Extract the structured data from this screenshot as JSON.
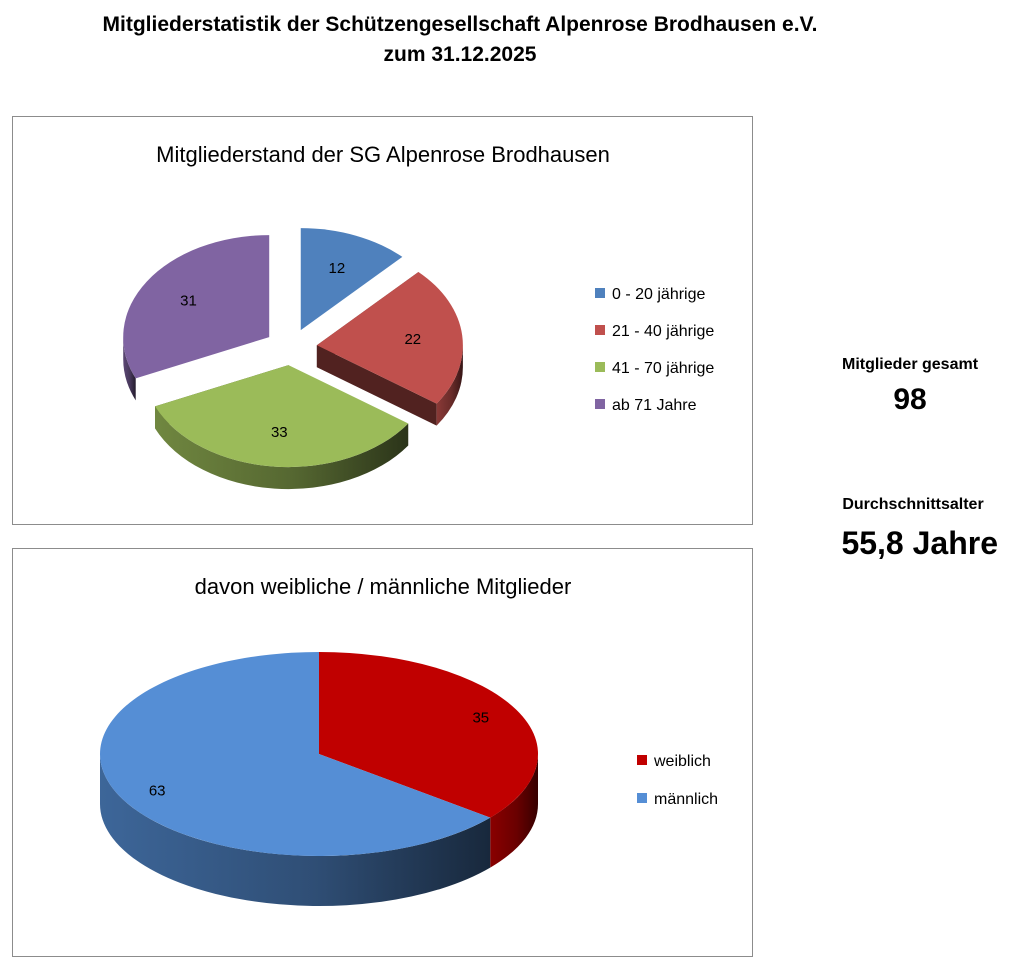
{
  "page_title": {
    "line1": "Mitgliederstatistik der Schützengesellschaft Alpenrose Brodhausen e.V.",
    "line2": "zum 31.12.2025"
  },
  "stats": {
    "members_label": "Mitglieder gesamt",
    "members_value": "98",
    "average_age_label": "Durchschnittsalter",
    "average_age_value": "55,8 Jahre"
  },
  "chart_data": [
    {
      "type": "pie",
      "style": "3d-exploded",
      "title": "Mitgliederstand der SG Alpenrose Brodhausen",
      "legend_position": "right",
      "categories": [
        "0 - 20 jährige",
        "21 - 40 jährige",
        "41 - 70 jährige",
        "ab 71 Jahre"
      ],
      "values": [
        12,
        22,
        33,
        31
      ],
      "colors": [
        "#4f81bd",
        "#c0504d",
        "#9bbb59",
        "#8064a2"
      ]
    },
    {
      "type": "pie",
      "style": "3d",
      "title": "davon weibliche / männliche Mitglieder",
      "legend_position": "right",
      "categories": [
        "weiblich",
        "männlich"
      ],
      "values": [
        35,
        63
      ],
      "colors": [
        "#c00000",
        "#558ed5"
      ]
    }
  ]
}
